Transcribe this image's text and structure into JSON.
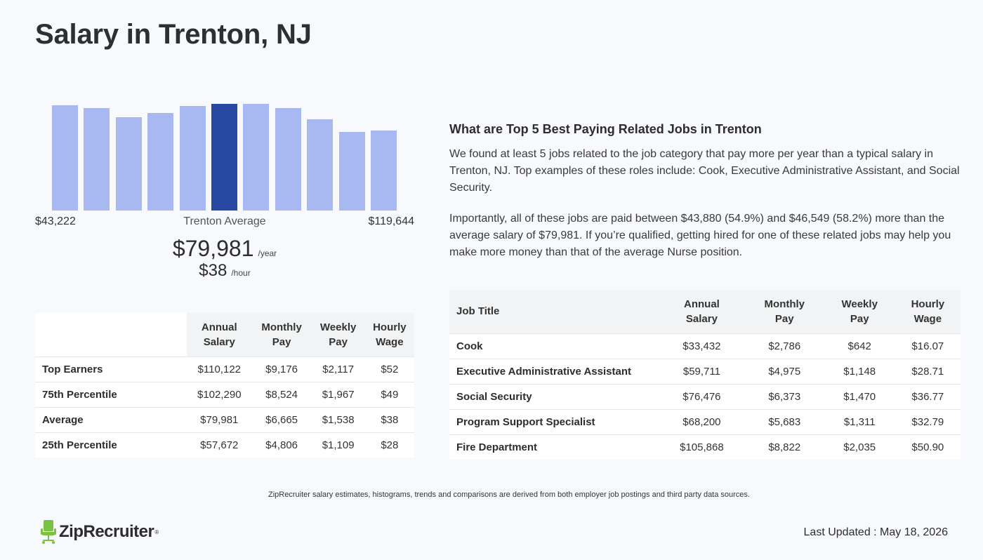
{
  "page": {
    "title": "Salary in Trenton, NJ"
  },
  "histogram": {
    "min_label": "$43,222",
    "mid_label": "Trenton Average",
    "max_label": "$119,644",
    "highlight_color": "#2749a4",
    "bar_color": "#a8b8f0",
    "highlight_index": 5,
    "bars": [
      0.94,
      0.91,
      0.83,
      0.87,
      0.93,
      0.95,
      0.95,
      0.91,
      0.81,
      0.7,
      0.71
    ]
  },
  "average": {
    "yearly": "$79,981",
    "yearly_unit": "/year",
    "hourly": "$38",
    "hourly_unit": "/hour"
  },
  "percentile_table": {
    "headers": [
      {
        "line1": "Annual",
        "line2": "Salary"
      },
      {
        "line1": "Monthly",
        "line2": "Pay"
      },
      {
        "line1": "Weekly",
        "line2": "Pay"
      },
      {
        "line1": "Hourly",
        "line2": "Wage"
      }
    ],
    "rows": [
      {
        "label": "Top Earners",
        "annual": "$110,122",
        "monthly": "$9,176",
        "weekly": "$2,117",
        "hourly": "$52"
      },
      {
        "label": "75th Percentile",
        "annual": "$102,290",
        "monthly": "$8,524",
        "weekly": "$1,967",
        "hourly": "$49"
      },
      {
        "label": "Average",
        "annual": "$79,981",
        "monthly": "$6,665",
        "weekly": "$1,538",
        "hourly": "$38"
      },
      {
        "label": "25th Percentile",
        "annual": "$57,672",
        "monthly": "$4,806",
        "weekly": "$1,109",
        "hourly": "$28"
      }
    ]
  },
  "related_jobs": {
    "heading": "What are Top 5 Best Paying Related Jobs in Trenton",
    "paragraph1": "We found at least 5 jobs related to the job category that pay more per year than a typical salary in Trenton, NJ. Top examples of these roles include: Cook, Executive Administrative Assistant, and Social Security.",
    "paragraph2": "Importantly, all of these jobs are paid between $43,880 (54.9%) and $46,549 (58.2%) more than the average salary of $79,981. If you’re qualified, getting hired for one of these related jobs may help you make more money than that of the average Nurse position.",
    "table_headers": {
      "job_title": "Job Title",
      "cols": [
        {
          "line1": "Annual",
          "line2": "Salary"
        },
        {
          "line1": "Monthly",
          "line2": "Pay"
        },
        {
          "line1": "Weekly",
          "line2": "Pay"
        },
        {
          "line1": "Hourly",
          "line2": "Wage"
        }
      ]
    },
    "rows": [
      {
        "title": "Cook",
        "annual": "$33,432",
        "monthly": "$2,786",
        "weekly": "$642",
        "hourly": "$16.07"
      },
      {
        "title": "Executive Administrative Assistant",
        "annual": "$59,711",
        "monthly": "$4,975",
        "weekly": "$1,148",
        "hourly": "$28.71"
      },
      {
        "title": "Social Security",
        "annual": "$76,476",
        "monthly": "$6,373",
        "weekly": "$1,470",
        "hourly": "$36.77"
      },
      {
        "title": "Program Support Specialist",
        "annual": "$68,200",
        "monthly": "$5,683",
        "weekly": "$1,311",
        "hourly": "$32.79"
      },
      {
        "title": "Fire Department",
        "annual": "$105,868",
        "monthly": "$8,822",
        "weekly": "$2,035",
        "hourly": "$50.90"
      }
    ]
  },
  "footer": {
    "note": "ZipRecruiter salary estimates, histograms, trends and comparisons are derived from both employer job postings and third party data sources.",
    "logo_text": "ZipRecruiter",
    "logo_icon": "chair-icon",
    "logo_color": "#7cc242",
    "last_updated": "Last Updated : May 18, 2026"
  }
}
